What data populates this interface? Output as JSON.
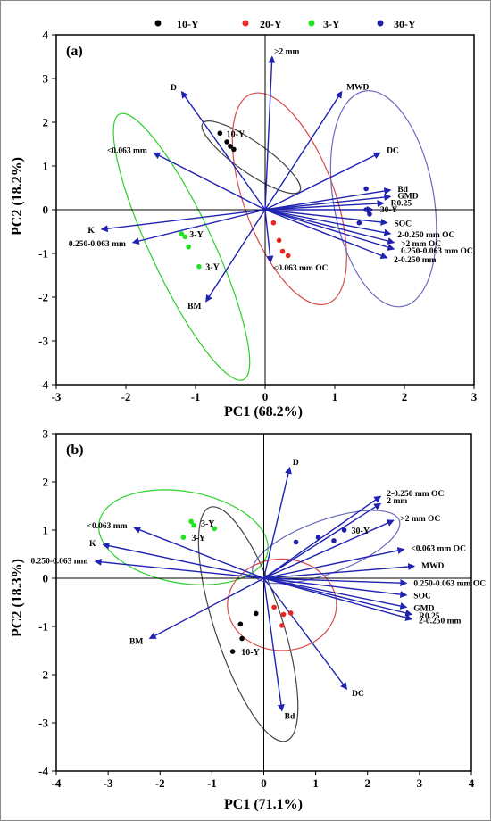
{
  "chart_data": [
    {
      "type": "scatter",
      "panel_label": "(a)",
      "xlabel": "PC1 (68.2%)",
      "ylabel": "PC2 (18.2%)",
      "xlim": [
        -3,
        3
      ],
      "ylim": [
        -4,
        4
      ],
      "xticks": [
        -3,
        -2,
        -1,
        0,
        1,
        2,
        3
      ],
      "yticks": [
        -4,
        -3,
        -2,
        -1,
        0,
        1,
        2,
        3,
        4
      ],
      "legend": {
        "placement": "top",
        "items": [
          {
            "name": "10-Y",
            "color": "#000000"
          },
          {
            "name": "20-Y",
            "color": "#e8251f"
          },
          {
            "name": "3-Y",
            "color": "#22e222"
          },
          {
            "name": "30-Y",
            "color": "#1f1fa8"
          }
        ]
      },
      "ellipses": [
        {
          "group": "10-Y",
          "color": "#444444",
          "cx": -0.2,
          "cy": 1.2,
          "rx": 0.85,
          "ry": 0.35,
          "angle": -35
        },
        {
          "group": "20-Y",
          "color": "#d94b4b",
          "cx": 0.35,
          "cy": 0.25,
          "rx": 0.65,
          "ry": 2.55,
          "angle": 20
        },
        {
          "group": "3-Y",
          "color": "#2bd12b",
          "cx": -1.2,
          "cy": -0.85,
          "rx": 0.45,
          "ry": 3.35,
          "angle": 25
        },
        {
          "group": "30-Y",
          "color": "#6a6ac0",
          "cx": 1.7,
          "cy": 0.25,
          "rx": 0.72,
          "ry": 2.5,
          "angle": 10
        }
      ],
      "vectors": [
        {
          "label": ">2 mm",
          "x": 0.1,
          "y": 3.5
        },
        {
          "label": "MWD",
          "x": 1.1,
          "y": 2.7
        },
        {
          "label": "D",
          "x": -1.2,
          "y": 2.7
        },
        {
          "label": "<0.063 mm",
          "x": -1.6,
          "y": 1.3
        },
        {
          "label": "DC",
          "x": 1.65,
          "y": 1.3
        },
        {
          "label": "Bd",
          "x": 1.8,
          "y": 0.45
        },
        {
          "label": "GMD",
          "x": 1.8,
          "y": 0.3
        },
        {
          "label": "R0.25",
          "x": 1.7,
          "y": 0.15
        },
        {
          "label": "30-Y",
          "x": 1.55,
          "y": 0.0
        },
        {
          "label": "SOC",
          "x": 1.75,
          "y": -0.3
        },
        {
          "label": "2-0.250 mm OC",
          "x": 1.8,
          "y": -0.55
        },
        {
          "label": ">2 mm OC",
          "x": 1.85,
          "y": -0.75
        },
        {
          "label": "0.250-0.063 mm OC",
          "x": 1.85,
          "y": -0.9
        },
        {
          "label": "2-0.250 mm",
          "x": 1.75,
          "y": -1.1
        },
        {
          "label": "K",
          "x": -2.35,
          "y": -0.45
        },
        {
          "label": "0.250-0.063 mm",
          "x": -1.9,
          "y": -0.75
        },
        {
          "label": "<0.063 mm OC",
          "x": 0.08,
          "y": -1.2
        },
        {
          "label": "BM",
          "x": -0.85,
          "y": -2.1
        }
      ],
      "points": [
        {
          "group": "10-Y",
          "x": -0.65,
          "y": 1.75
        },
        {
          "group": "10-Y",
          "x": -0.55,
          "y": 1.55
        },
        {
          "group": "10-Y",
          "x": -0.5,
          "y": 1.45
        },
        {
          "group": "10-Y",
          "x": -0.45,
          "y": 1.38
        },
        {
          "group": "20-Y",
          "x": 0.12,
          "y": -0.3
        },
        {
          "group": "20-Y",
          "x": 0.2,
          "y": -0.7
        },
        {
          "group": "20-Y",
          "x": 0.25,
          "y": -0.95
        },
        {
          "group": "20-Y",
          "x": 0.33,
          "y": -1.05
        },
        {
          "group": "3-Y",
          "x": -1.2,
          "y": -0.55
        },
        {
          "group": "3-Y",
          "x": -1.15,
          "y": -0.62
        },
        {
          "group": "3-Y",
          "x": -1.1,
          "y": -0.85
        },
        {
          "group": "3-Y",
          "x": -0.95,
          "y": -1.3
        },
        {
          "group": "30-Y",
          "x": 1.45,
          "y": 0.48
        },
        {
          "group": "30-Y",
          "x": 1.45,
          "y": 0.0
        },
        {
          "group": "30-Y",
          "x": 1.5,
          "y": -0.1
        },
        {
          "group": "30-Y",
          "x": 1.35,
          "y": -0.3
        }
      ],
      "point_labels": [
        {
          "text": "10-Y",
          "x": -0.62,
          "y": 1.75
        },
        {
          "text": "3-Y",
          "x": -1.15,
          "y": -0.55
        },
        {
          "text": "3-Y",
          "x": -0.92,
          "y": -1.3
        }
      ]
    },
    {
      "type": "scatter",
      "panel_label": "(b)",
      "xlabel": "PC1 (71.1%)",
      "ylabel": "PC2 (18.3%)",
      "xlim": [
        -4,
        4
      ],
      "ylim": [
        -4,
        3
      ],
      "xticks": [
        -4,
        -3,
        -2,
        -1,
        0,
        1,
        2,
        3,
        4
      ],
      "yticks": [
        -4,
        -3,
        -2,
        -1,
        0,
        1,
        2,
        3
      ],
      "ellipses": [
        {
          "group": "3-Y",
          "color": "#2bd12b",
          "cx": -1.55,
          "cy": 0.85,
          "rx": 1.65,
          "ry": 0.95,
          "angle": -10
        },
        {
          "group": "10-Y",
          "color": "#444444",
          "cx": -0.3,
          "cy": -0.95,
          "rx": 0.65,
          "ry": 2.55,
          "angle": 18
        },
        {
          "group": "20-Y",
          "color": "#d94b4b",
          "cx": 0.35,
          "cy": -0.55,
          "rx": 1.05,
          "ry": 0.95,
          "angle": 0
        },
        {
          "group": "30-Y",
          "color": "#6a6ac0",
          "cx": 1.2,
          "cy": 0.65,
          "rx": 1.5,
          "ry": 0.55,
          "angle": 20
        }
      ],
      "vectors": [
        {
          "label": "D",
          "x": 0.5,
          "y": 2.3
        },
        {
          "label": "2-0.250 mm OC",
          "x": 2.25,
          "y": 1.7
        },
        {
          "label": "2 mm",
          "x": 2.25,
          "y": 1.55
        },
        {
          "label": ">2 mm OC",
          "x": 2.5,
          "y": 1.2
        },
        {
          "label": "<0.063 mm OC",
          "x": 2.7,
          "y": 0.6
        },
        {
          "label": "MWD",
          "x": 2.9,
          "y": 0.25
        },
        {
          "label": "0.250-0.063 mm OC",
          "x": 2.75,
          "y": -0.1
        },
        {
          "label": "SOC",
          "x": 2.75,
          "y": -0.35
        },
        {
          "label": "GMD",
          "x": 2.75,
          "y": -0.6
        },
        {
          "label": "R0.25",
          "x": 2.85,
          "y": -0.75
        },
        {
          "label": "2-0.250 mm",
          "x": 2.85,
          "y": -0.85
        },
        {
          "label": "<0.063 mm",
          "x": -2.5,
          "y": 1.05
        },
        {
          "label": "K",
          "x": -3.1,
          "y": 0.7
        },
        {
          "label": "0.250-0.063 mm",
          "x": -3.25,
          "y": 0.35
        },
        {
          "label": "BM",
          "x": -2.2,
          "y": -1.25
        },
        {
          "label": "DC",
          "x": 1.6,
          "y": -2.3
        },
        {
          "label": "Bd",
          "x": 0.35,
          "y": -2.75
        }
      ],
      "points": [
        {
          "group": "3-Y",
          "x": -1.4,
          "y": 1.18
        },
        {
          "group": "3-Y",
          "x": -1.35,
          "y": 1.1
        },
        {
          "group": "3-Y",
          "x": -0.95,
          "y": 1.03
        },
        {
          "group": "3-Y",
          "x": -1.55,
          "y": 0.85
        },
        {
          "group": "30-Y",
          "x": 1.55,
          "y": 1.0
        },
        {
          "group": "30-Y",
          "x": 1.35,
          "y": 0.78
        },
        {
          "group": "30-Y",
          "x": 1.05,
          "y": 0.85
        },
        {
          "group": "30-Y",
          "x": 0.62,
          "y": 0.75
        },
        {
          "group": "20-Y",
          "x": 0.2,
          "y": -0.6
        },
        {
          "group": "20-Y",
          "x": 0.38,
          "y": -0.75
        },
        {
          "group": "20-Y",
          "x": 0.52,
          "y": -0.72
        },
        {
          "group": "20-Y",
          "x": 0.35,
          "y": -0.98
        },
        {
          "group": "10-Y",
          "x": -0.15,
          "y": -0.73
        },
        {
          "group": "10-Y",
          "x": -0.45,
          "y": -0.95
        },
        {
          "group": "10-Y",
          "x": -0.42,
          "y": -1.25
        },
        {
          "group": "10-Y",
          "x": -0.6,
          "y": -1.52
        }
      ],
      "point_labels": [
        {
          "text": "3-Y",
          "x": -1.3,
          "y": 1.15
        },
        {
          "text": "3-Y",
          "x": -1.48,
          "y": 0.85
        },
        {
          "text": "30-Y",
          "x": 1.6,
          "y": 1.0
        },
        {
          "text": "10-Y",
          "x": -0.52,
          "y": -1.52
        }
      ]
    }
  ]
}
